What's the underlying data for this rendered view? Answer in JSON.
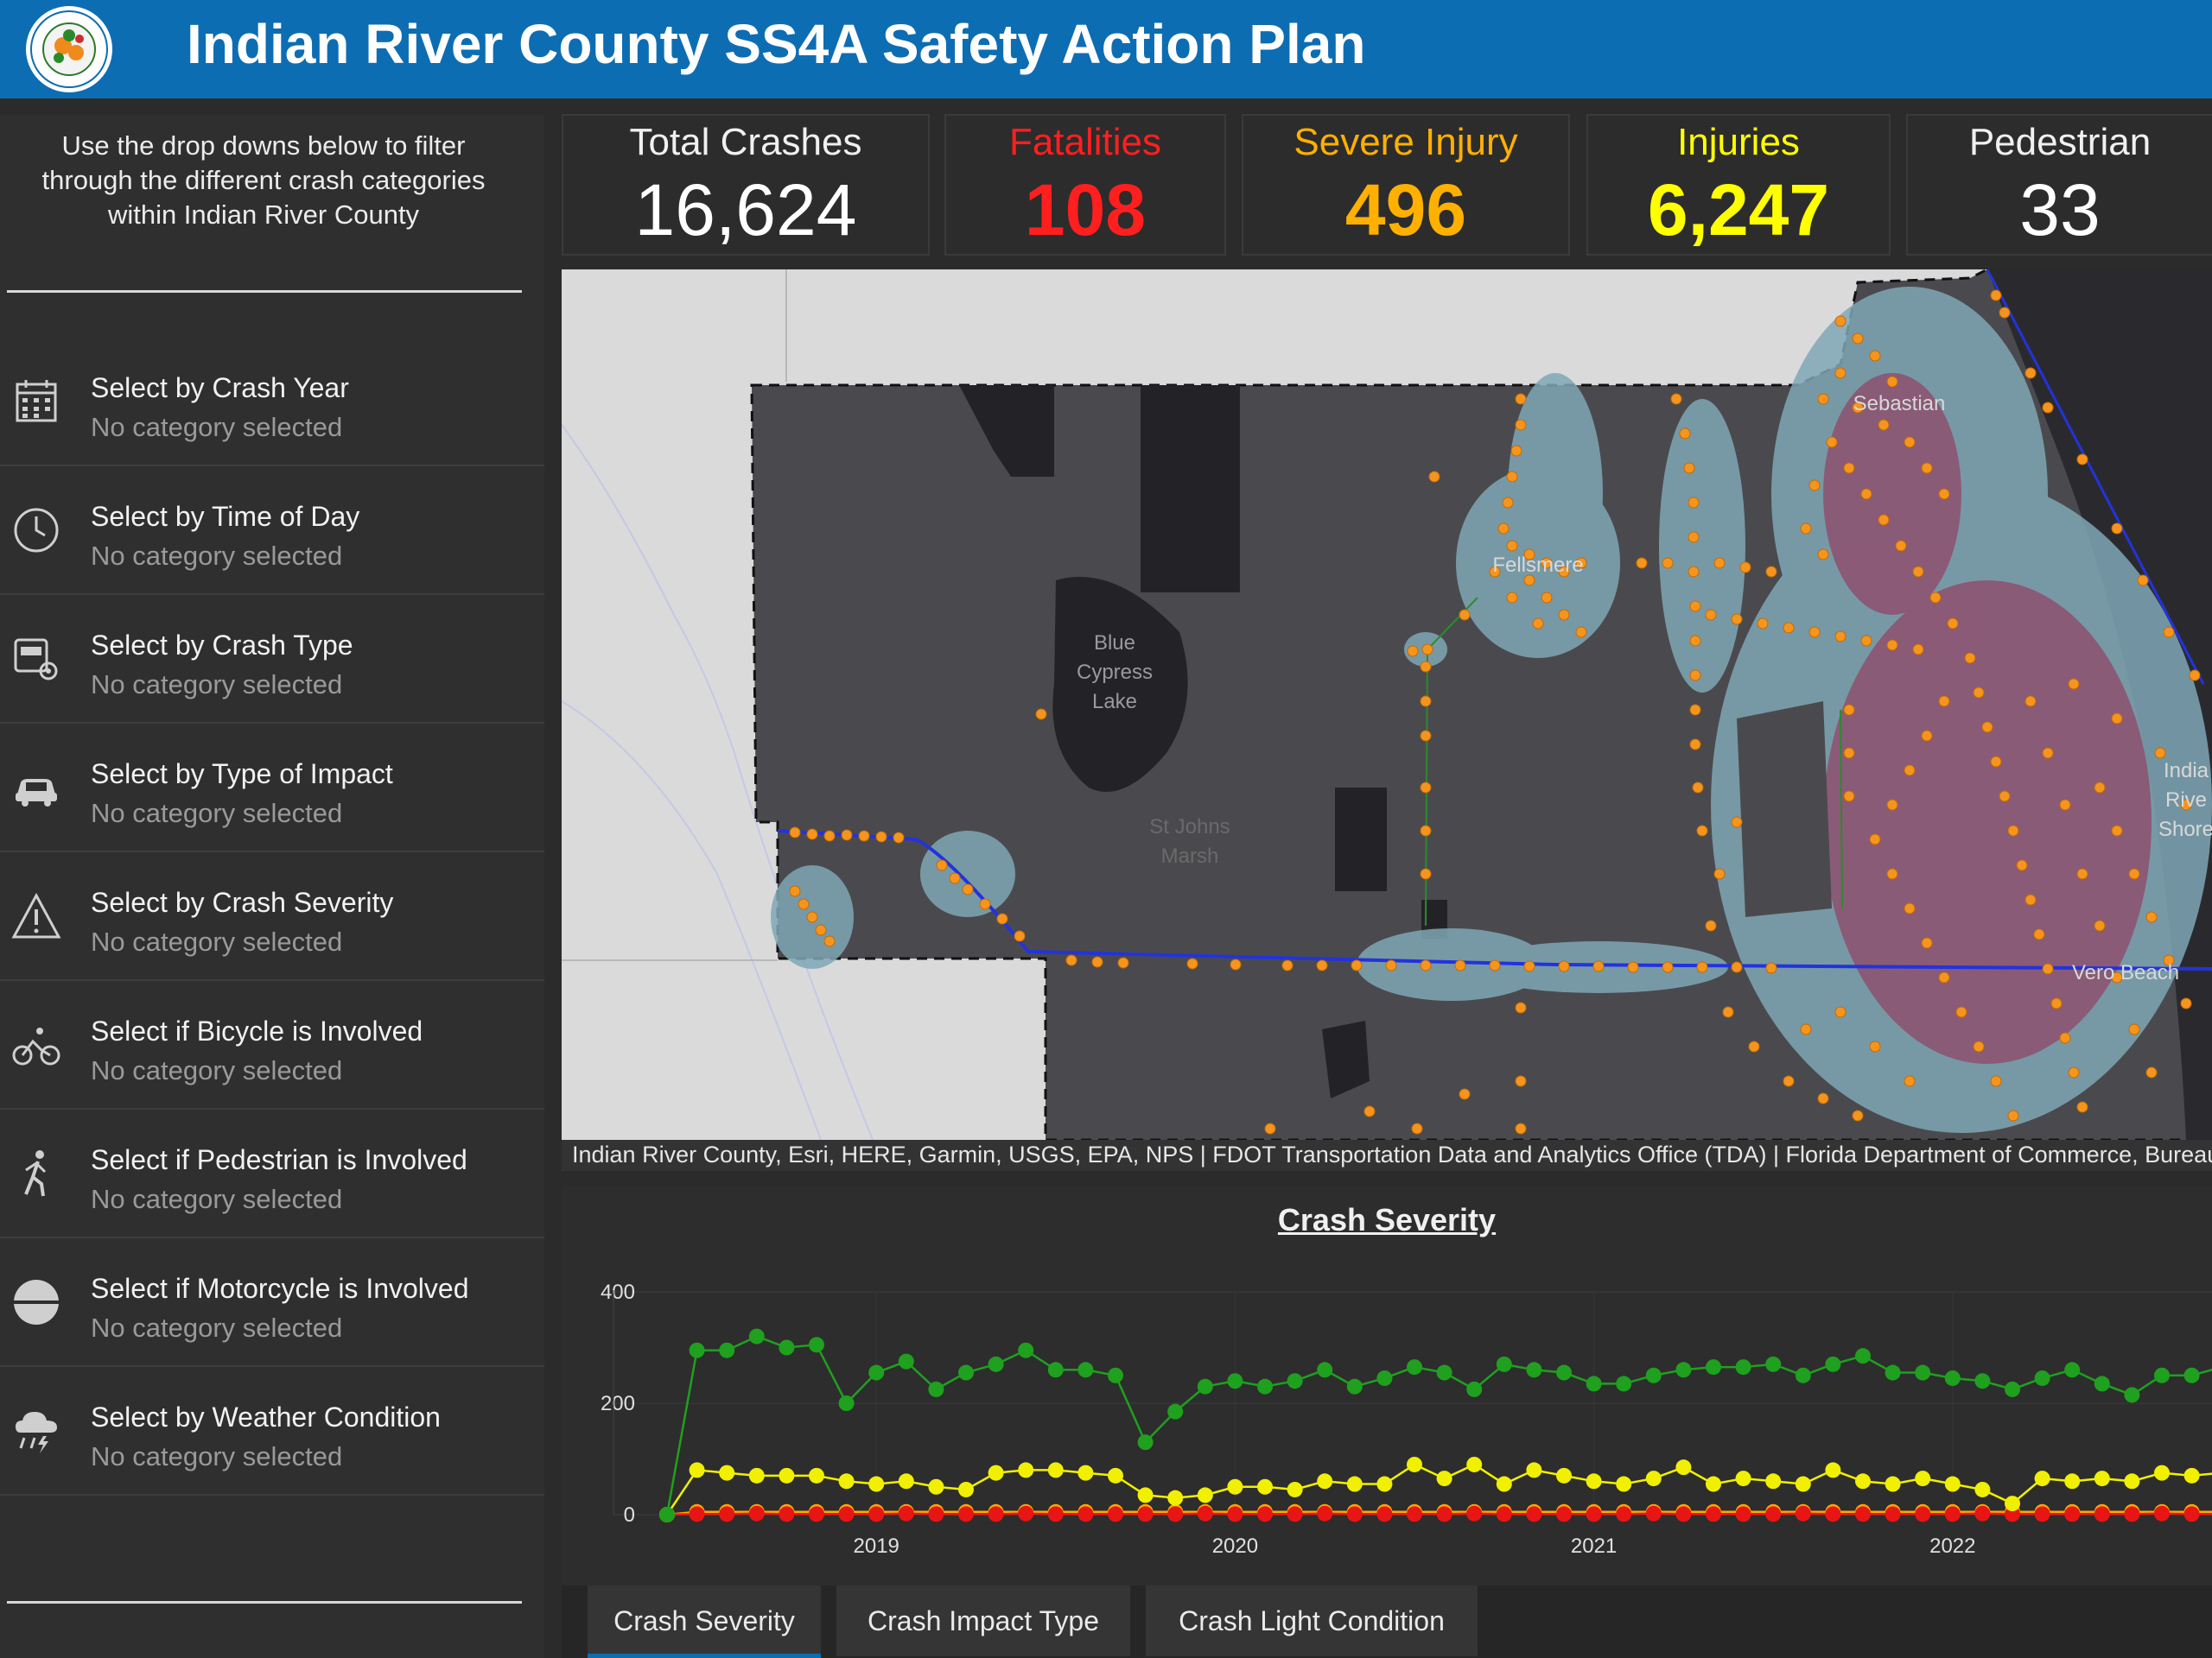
{
  "header": {
    "title": "Indian River County SS4A Safety Action Plan"
  },
  "logo": {
    "text_top": "INDIAN RIVER COUNTY",
    "text_bottom": "FLORIDA"
  },
  "sidebar": {
    "intro": "Use the drop downs below to filter through the different crash categories within Indian River County",
    "filters": [
      {
        "title": "Select by Crash Year",
        "value": "No category selected",
        "icon": "calendar-icon"
      },
      {
        "title": "Select by Time of Day",
        "value": "No category selected",
        "icon": "clock-icon"
      },
      {
        "title": "Select by Crash Type",
        "value": "No category selected",
        "icon": "crash-type-icon"
      },
      {
        "title": "Select by Type of Impact",
        "value": "No category selected",
        "icon": "car-icon"
      },
      {
        "title": "Select by Crash Severity",
        "value": "No category selected",
        "icon": "warning-icon"
      },
      {
        "title": "Select if Bicycle is Involved",
        "value": "No category selected",
        "icon": "bicycle-icon"
      },
      {
        "title": "Select if Pedestrian is Involved",
        "value": "No category selected",
        "icon": "pedestrian-icon"
      },
      {
        "title": "Select if Motorcycle is Involved",
        "value": "No category selected",
        "icon": "motorcycle-icon"
      },
      {
        "title": "Select by Weather Condition",
        "value": "No category selected",
        "icon": "weather-icon"
      }
    ]
  },
  "kpis": [
    {
      "label": "Total Crashes",
      "value": "16,624",
      "label_color": "#f0f0f0",
      "value_color": "#ffffff"
    },
    {
      "label": "Fatalities",
      "value": "108",
      "label_color": "#ff1f1f",
      "value_color": "#ff1f1f"
    },
    {
      "label": "Severe Injury",
      "value": "496",
      "label_color": "#ffb000",
      "value_color": "#ffb000"
    },
    {
      "label": "Injuries",
      "value": "6,247",
      "label_color": "#ffff00",
      "value_color": "#ffff00"
    },
    {
      "label": "Pedestrian",
      "value": "33",
      "label_color": "#f0f0f0",
      "value_color": "#ffffff"
    }
  ],
  "map": {
    "labels": {
      "lake": [
        "Blue",
        "Cypress",
        "Lake"
      ],
      "marsh": [
        "St Johns",
        "Marsh"
      ],
      "sebastian": "Sebastian",
      "fellsmere": "Fellsmere",
      "vero": "Vero Beach",
      "irs": [
        "India",
        "Rive",
        "Shore"
      ]
    },
    "attribution": "Indian River County, Esri, HERE, Garmin, USGS, EPA, NPS | FDOT Transportation Data and Analytics Office (TDA) | Florida Department of Commerce, Bureau of"
  },
  "chart_data": {
    "type": "line",
    "title": "Crash Severity",
    "ylim": [
      0,
      400
    ],
    "yticks": [
      0,
      200,
      400
    ],
    "xticks": [
      "2019",
      "2020",
      "2021",
      "2022"
    ],
    "x_start": "2018-06",
    "x_end": "2023-04",
    "grid": true,
    "series": [
      {
        "color": "#1fa01f",
        "values": [
          0,
          295,
          295,
          320,
          300,
          305,
          200,
          255,
          275,
          225,
          255,
          270,
          295,
          260,
          260,
          250,
          130,
          185,
          230,
          240,
          230,
          240,
          260,
          230,
          245,
          265,
          255,
          225,
          270,
          260,
          255,
          235,
          235,
          250,
          260,
          265,
          265,
          270,
          250,
          270,
          285,
          255,
          255,
          245,
          240,
          225,
          245,
          260,
          235,
          215,
          250,
          250,
          265,
          255
        ]
      },
      {
        "color": "#f0f000",
        "values": [
          0,
          80,
          75,
          70,
          70,
          70,
          60,
          55,
          60,
          50,
          45,
          75,
          80,
          80,
          75,
          70,
          35,
          30,
          35,
          50,
          50,
          45,
          60,
          55,
          55,
          90,
          65,
          90,
          55,
          80,
          70,
          60,
          55,
          65,
          85,
          55,
          65,
          60,
          55,
          80,
          60,
          55,
          65,
          55,
          45,
          20,
          65,
          60,
          65,
          60,
          75,
          70,
          75,
          70
        ]
      },
      {
        "color": "#ffa800",
        "values": [
          0,
          5,
          5,
          5,
          5,
          5,
          5,
          5,
          5,
          5,
          5,
          5,
          5,
          5,
          5,
          5,
          5,
          5,
          5,
          5,
          5,
          5,
          5,
          5,
          5,
          5,
          5,
          5,
          5,
          5,
          5,
          5,
          5,
          5,
          5,
          5,
          5,
          5,
          5,
          5,
          5,
          5,
          5,
          5,
          5,
          5,
          5,
          5,
          5,
          5,
          5,
          5,
          5,
          5
        ]
      },
      {
        "color": "#e81515",
        "values": [
          0,
          1,
          1,
          2,
          1,
          1,
          1,
          1,
          2,
          1,
          1,
          1,
          2,
          1,
          1,
          1,
          1,
          1,
          2,
          1,
          1,
          1,
          2,
          1,
          1,
          1,
          1,
          2,
          1,
          1,
          1,
          1,
          1,
          2,
          1,
          1,
          1,
          1,
          2,
          1,
          1,
          1,
          1,
          1,
          2,
          1,
          1,
          1,
          1,
          1,
          2,
          1,
          1,
          1
        ]
      }
    ]
  },
  "tabs": [
    {
      "label": "Crash Severity",
      "active": true
    },
    {
      "label": "Crash Impact Type",
      "active": false
    },
    {
      "label": "Crash Light Condition",
      "active": false
    }
  ]
}
